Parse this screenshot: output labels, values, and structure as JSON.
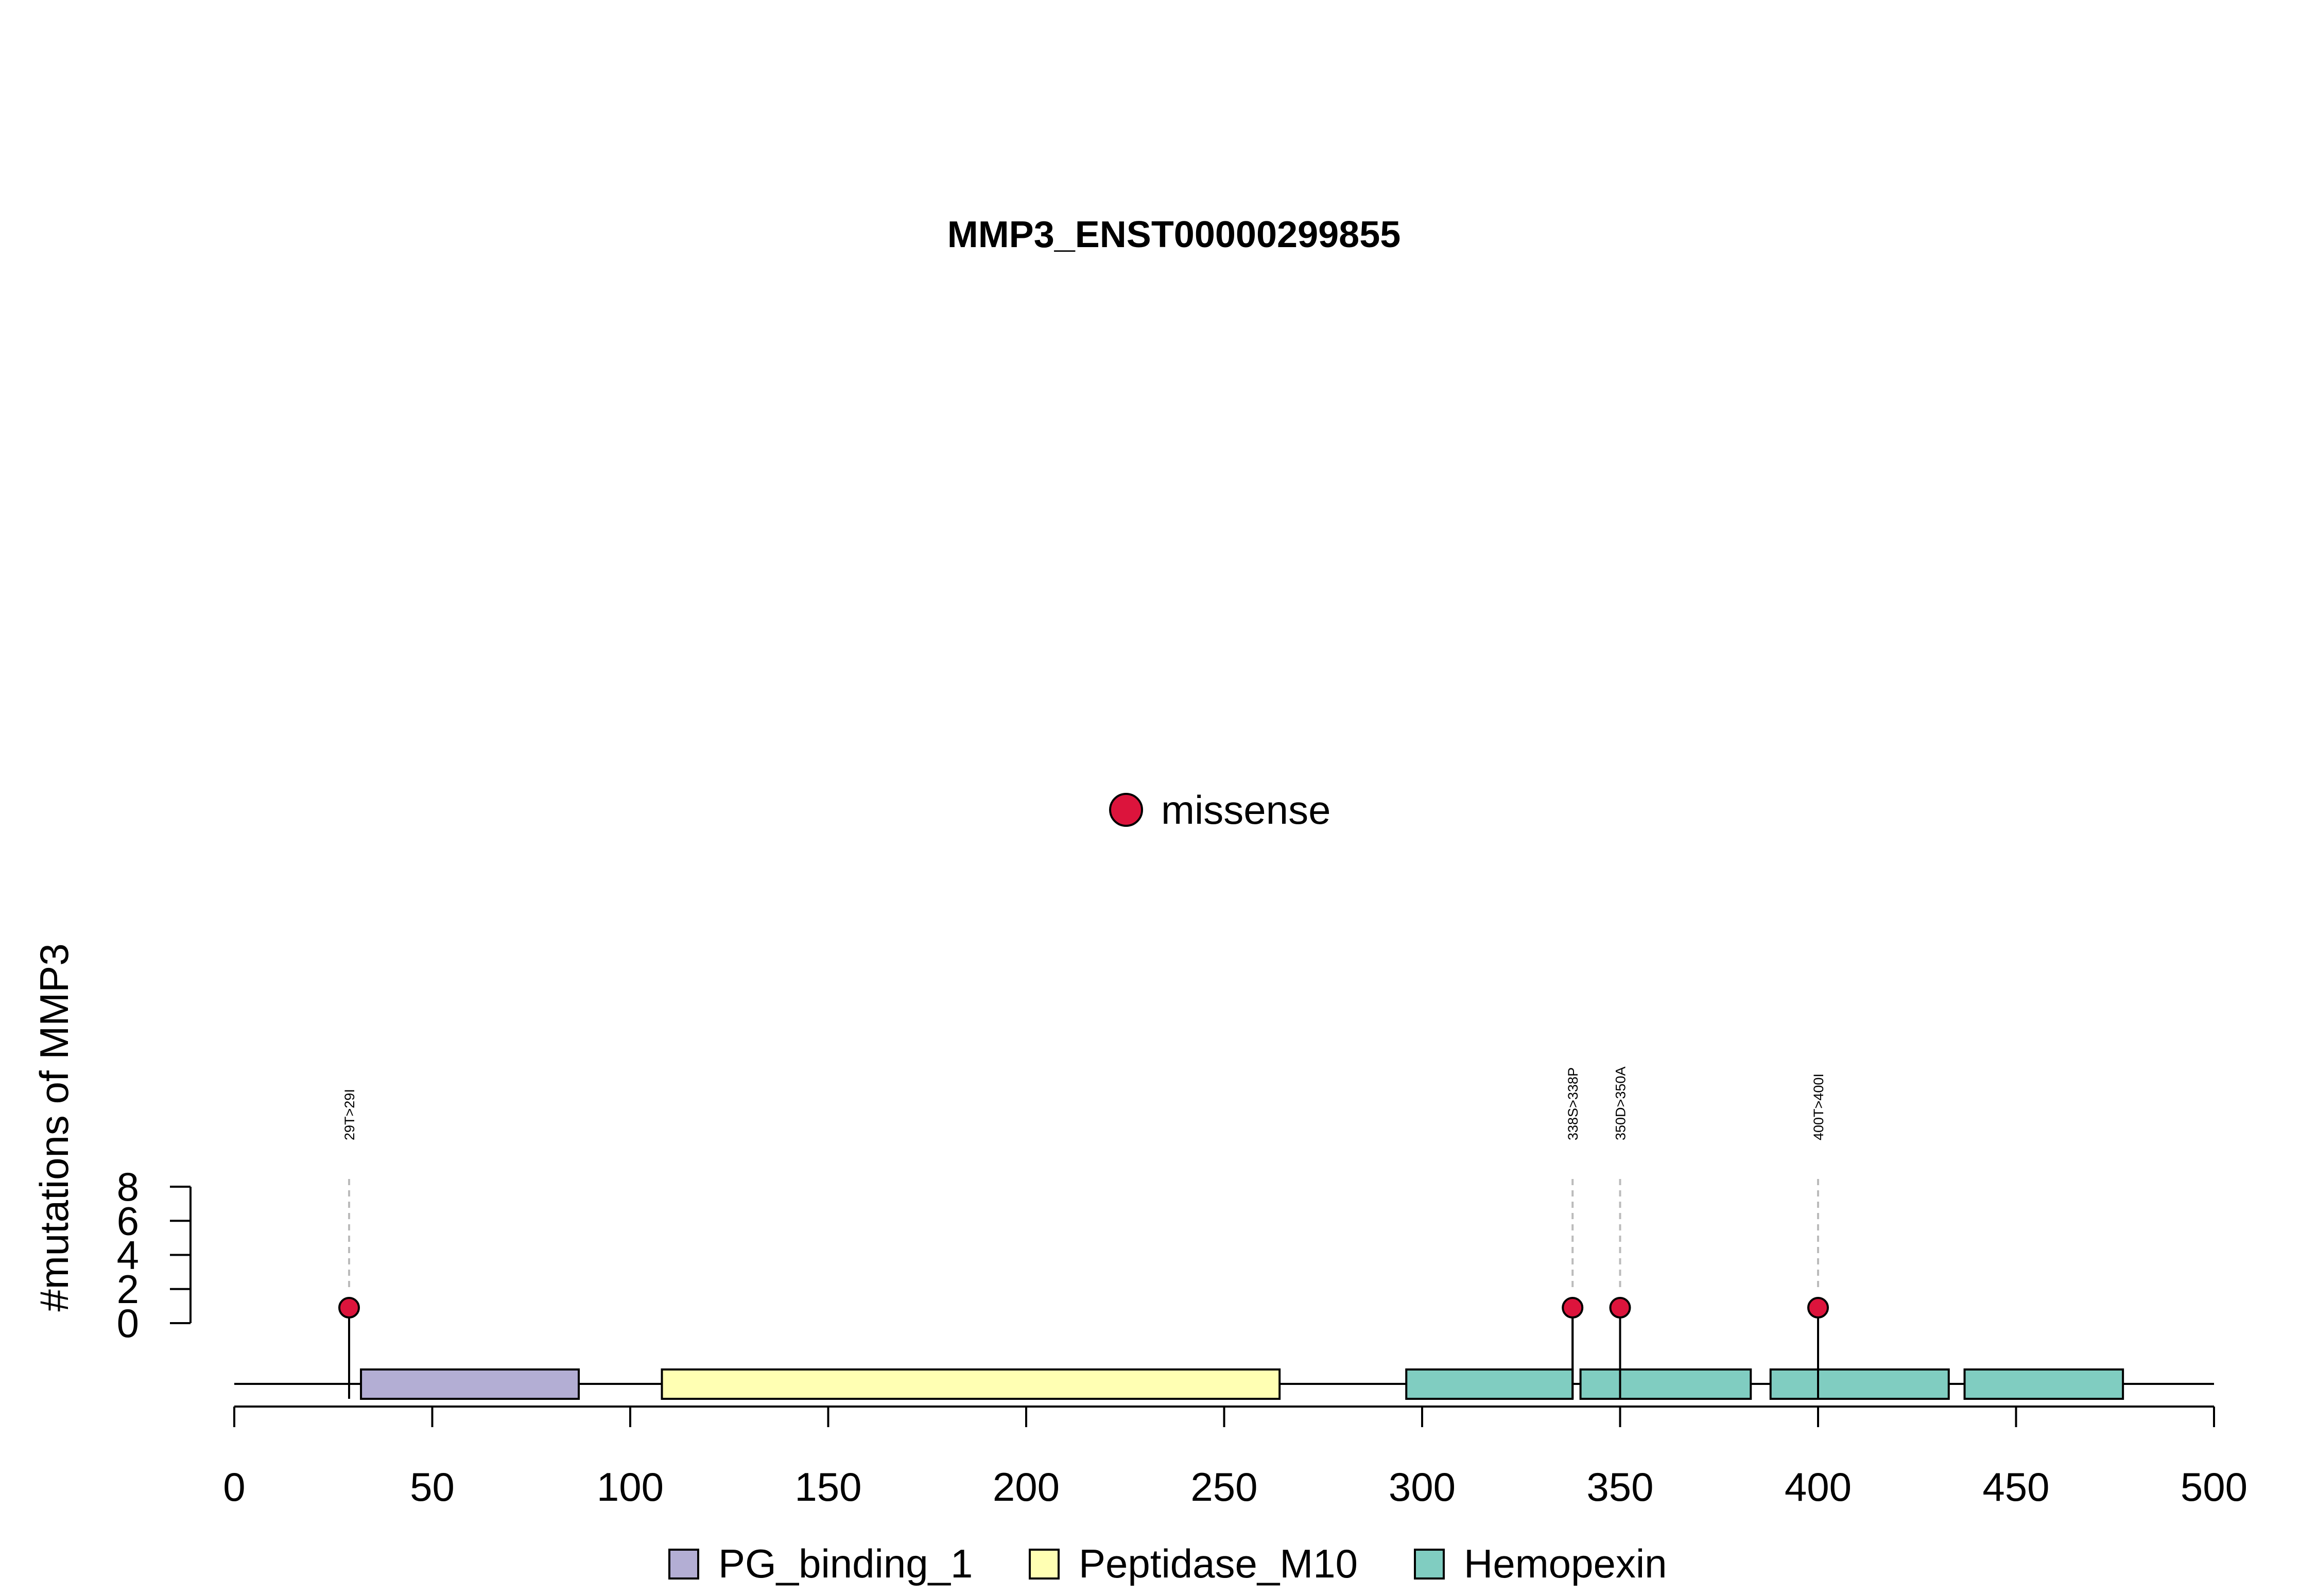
{
  "chart_data": {
    "type": "lollipop",
    "title": "MMP3_ENST00000299855",
    "ylabel": "#mutations of MMP3",
    "xlim": [
      0,
      500
    ],
    "x_ticks": [
      0,
      50,
      100,
      150,
      200,
      250,
      300,
      350,
      400,
      450,
      500
    ],
    "y_ticks": [
      0,
      2,
      4,
      6,
      8
    ],
    "mutation_legend": [
      {
        "label": "missense",
        "color": "#dc143c"
      }
    ],
    "mutations": [
      {
        "position": 29,
        "label": "29T>29I",
        "count": 1,
        "type": "missense"
      },
      {
        "position": 338,
        "label": "338S>338P",
        "count": 1,
        "type": "missense"
      },
      {
        "position": 350,
        "label": "350D>350A",
        "count": 1,
        "type": "missense"
      },
      {
        "position": 400,
        "label": "400T>400I",
        "count": 1,
        "type": "missense"
      }
    ],
    "domains": [
      {
        "name": "PG_binding_1",
        "start": 32,
        "end": 87,
        "color": "#b3aed4"
      },
      {
        "name": "Peptidase_M10",
        "start": 108,
        "end": 264,
        "color": "#ffffb3"
      },
      {
        "name": "Hemopexin",
        "start": 296,
        "end": 338,
        "color": "#80cdc1"
      },
      {
        "name": "Hemopexin",
        "start": 340,
        "end": 383,
        "color": "#80cdc1"
      },
      {
        "name": "Hemopexin",
        "start": 388,
        "end": 433,
        "color": "#80cdc1"
      },
      {
        "name": "Hemopexin",
        "start": 437,
        "end": 477,
        "color": "#80cdc1"
      }
    ],
    "domain_legend": [
      {
        "name": "PG_binding_1",
        "color": "#b3aed4"
      },
      {
        "name": "Peptidase_M10",
        "color": "#ffffb3"
      },
      {
        "name": "Hemopexin",
        "color": "#80cdc1"
      }
    ]
  }
}
